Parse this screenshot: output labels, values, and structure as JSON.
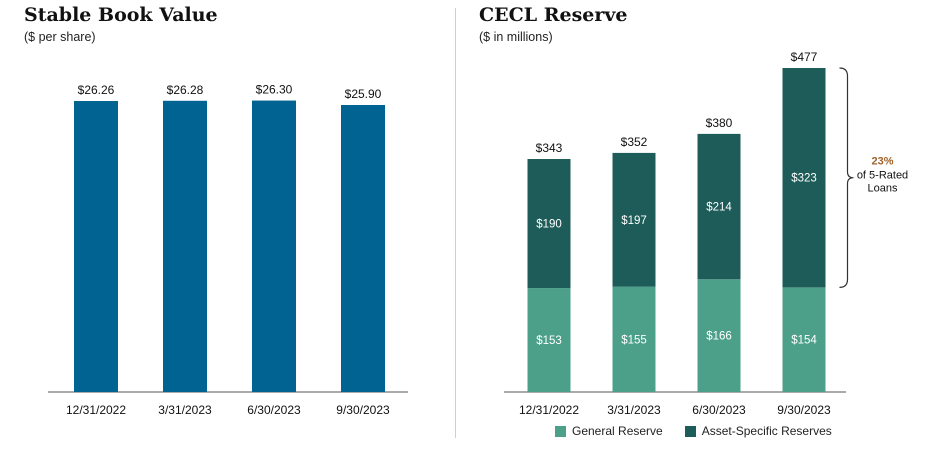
{
  "left_chart": {
    "title": "Stable Book Value",
    "subtitle": "($ per share)"
  },
  "right_chart": {
    "title": "CECL Reserve",
    "subtitle": "($ in millions)",
    "annotation": {
      "percent": "23%",
      "line2": "of 5-Rated",
      "line3": "Loans"
    },
    "legend": [
      "General Reserve",
      "Asset-Specific Reserves"
    ]
  },
  "colors": {
    "book_value_bar": "#006391",
    "general_reserve": "#4ca08a",
    "asset_specific_reserves": "#1d5c58",
    "annotation_percent": "#a0612a"
  },
  "chart_data": [
    {
      "type": "bar",
      "title": "Stable Book Value",
      "subtitle": "($ per share)",
      "categories": [
        "12/31/2022",
        "3/31/2023",
        "6/30/2023",
        "9/30/2023"
      ],
      "values": [
        26.26,
        26.28,
        26.3,
        25.9
      ],
      "value_labels": [
        "$26.26",
        "$26.28",
        "$26.30",
        "$25.90"
      ],
      "ylim": [
        0,
        29.6
      ],
      "grid": false
    },
    {
      "type": "bar",
      "stacked": true,
      "title": "CECL Reserve",
      "subtitle": "($ in millions)",
      "categories": [
        "12/31/2022",
        "3/31/2023",
        "6/30/2023",
        "9/30/2023"
      ],
      "series": [
        {
          "name": "General Reserve",
          "values": [
            153,
            155,
            166,
            154
          ],
          "labels": [
            "$153",
            "$155",
            "$166",
            "$154"
          ]
        },
        {
          "name": "Asset-Specific Reserves",
          "values": [
            190,
            197,
            214,
            323
          ],
          "labels": [
            "$190",
            "$197",
            "$214",
            "$323"
          ]
        }
      ],
      "totals": [
        343,
        352,
        380,
        477
      ],
      "total_labels": [
        "$343",
        "$352",
        "$380",
        "$477"
      ],
      "ylim": [
        0,
        530
      ],
      "legend_position": "bottom",
      "grid": false
    }
  ]
}
